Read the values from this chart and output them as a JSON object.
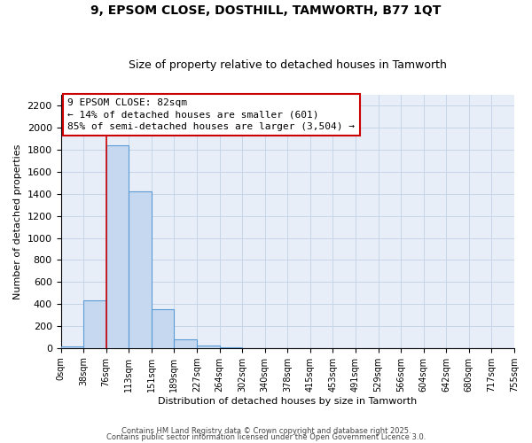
{
  "title": "9, EPSOM CLOSE, DOSTHILL, TAMWORTH, B77 1QT",
  "subtitle": "Size of property relative to detached houses in Tamworth",
  "xlabel": "Distribution of detached houses by size in Tamworth",
  "ylabel": "Number of detached properties",
  "bar_values": [
    15,
    430,
    1840,
    1420,
    355,
    80,
    25,
    5,
    0,
    0,
    0,
    0,
    0,
    0,
    0,
    0,
    0,
    0,
    0,
    0
  ],
  "bar_labels": [
    "0sqm",
    "38sqm",
    "76sqm",
    "113sqm",
    "151sqm",
    "189sqm",
    "227sqm",
    "264sqm",
    "302sqm",
    "340sqm",
    "378sqm",
    "415sqm",
    "453sqm",
    "491sqm",
    "529sqm",
    "566sqm",
    "604sqm",
    "642sqm",
    "680sqm",
    "717sqm",
    "755sqm"
  ],
  "bar_color": "#c5d8f0",
  "bar_edge_color": "#5b9bd5",
  "property_line_x": 76,
  "property_line_color": "#cc0000",
  "annotation_text": "9 EPSOM CLOSE: 82sqm\n← 14% of detached houses are smaller (601)\n85% of semi-detached houses are larger (3,504) →",
  "annotation_box_color": "#ffffff",
  "annotation_border_color": "#cc0000",
  "ylim": [
    0,
    2300
  ],
  "yticks": [
    0,
    200,
    400,
    600,
    800,
    1000,
    1200,
    1400,
    1600,
    1800,
    2000,
    2200
  ],
  "grid_color": "#c8d4e8",
  "bg_color": "#e8eef8",
  "fig_bg_color": "#ffffff",
  "footer_text1": "Contains HM Land Registry data © Crown copyright and database right 2025.",
  "footer_text2": "Contains public sector information licensed under the Open Government Licence 3.0.",
  "bin_width": 37.7,
  "title_fontsize": 10,
  "subtitle_fontsize": 9,
  "ylabel_fontsize": 8,
  "xlabel_fontsize": 8,
  "ytick_fontsize": 8,
  "xtick_fontsize": 7,
  "annotation_fontsize": 8,
  "footer_fontsize": 6
}
